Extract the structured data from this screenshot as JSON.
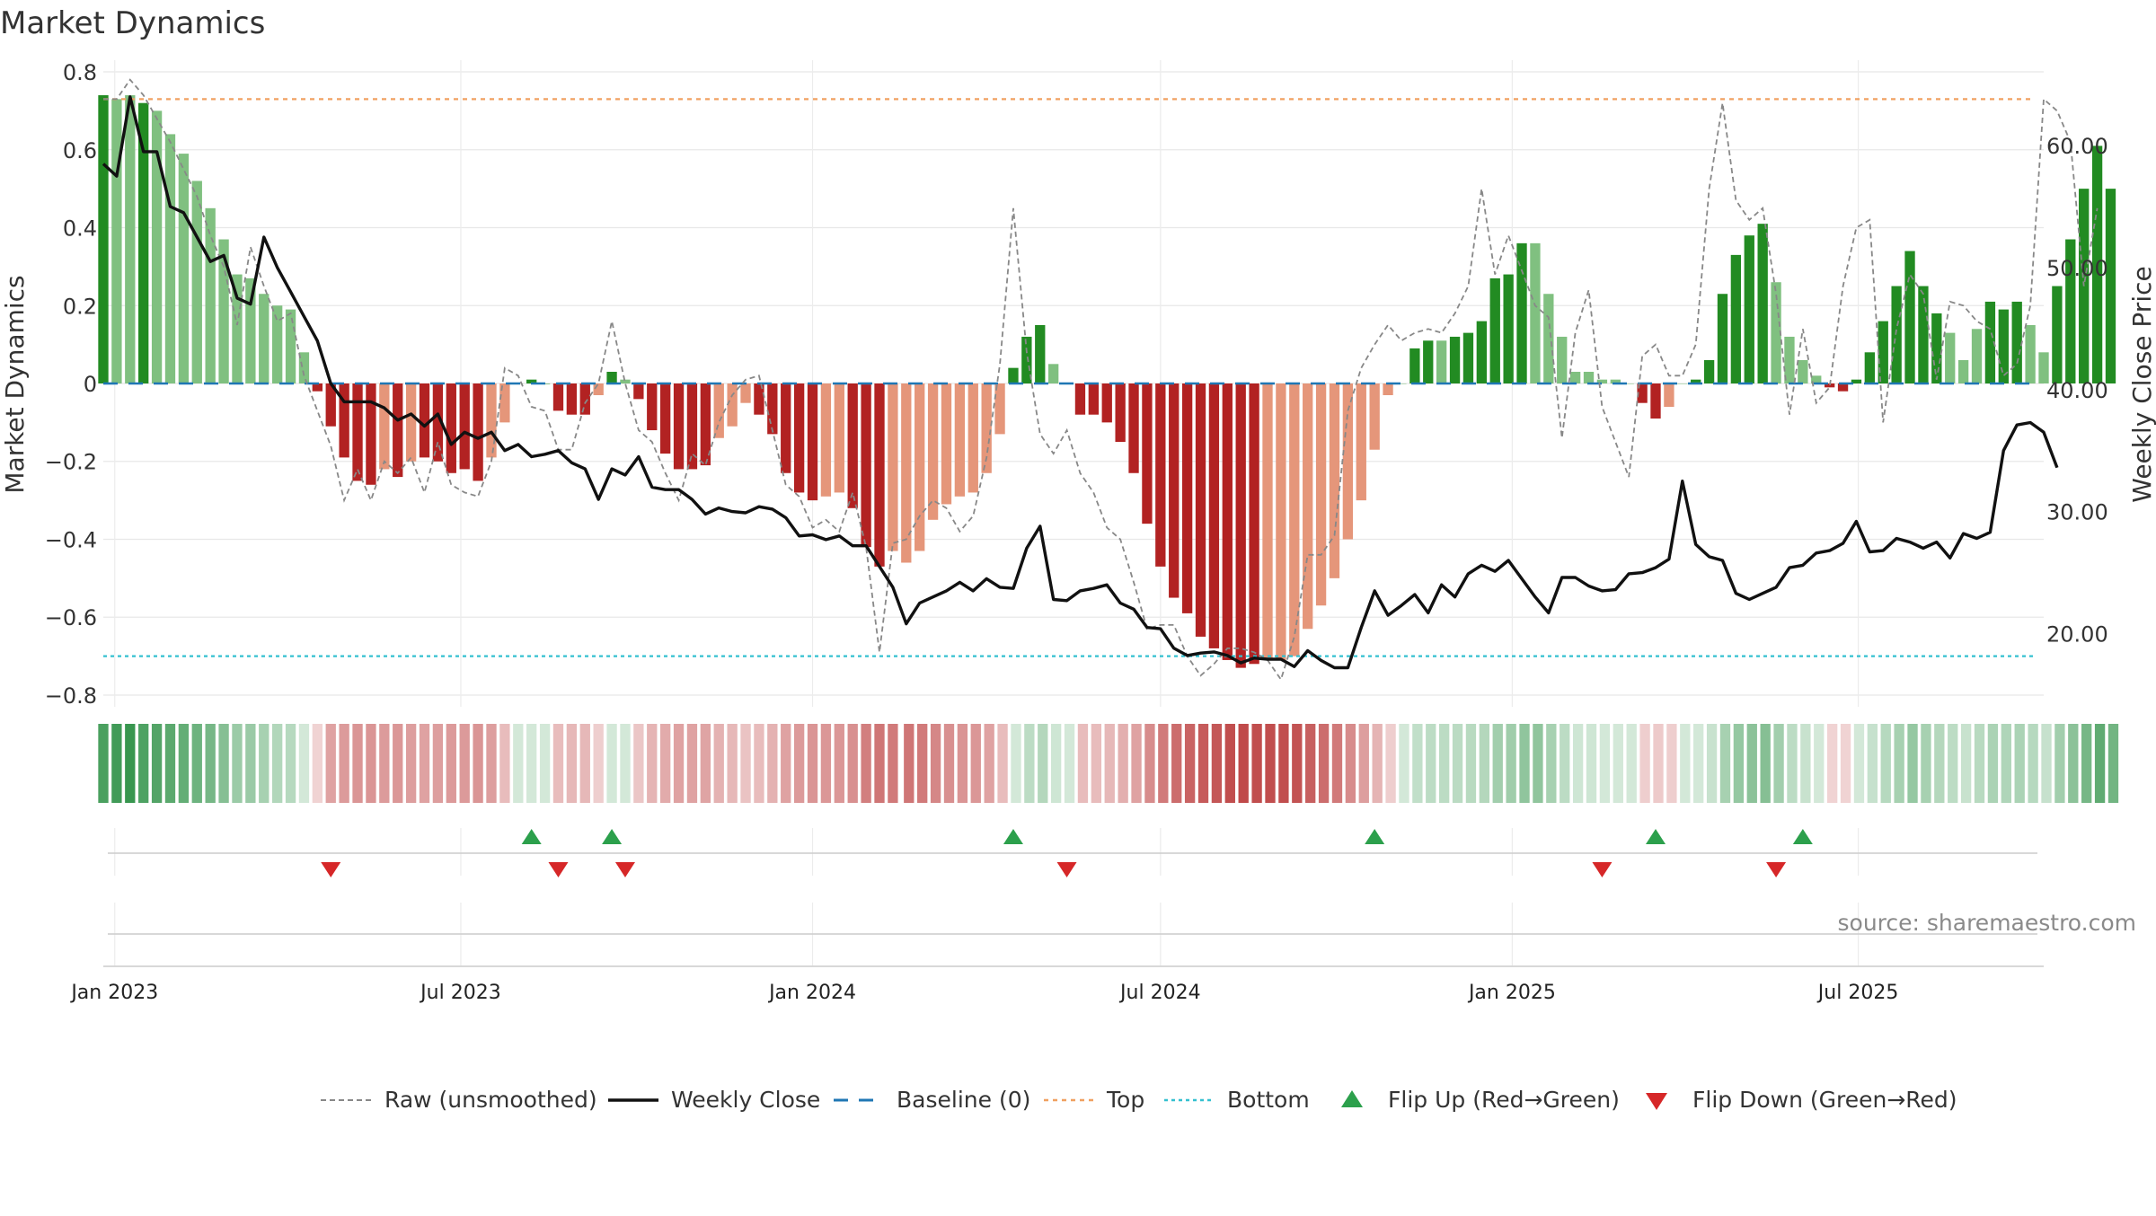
{
  "title": "Market Dynamics",
  "source": "source: sharemaestro.com",
  "chart_data": {
    "type": "bar",
    "title": "Market Dynamics",
    "ylabel": "Market Dynamics",
    "y2label": "Weekly Close Price",
    "ylim": [
      -0.83,
      0.83
    ],
    "y2lim": [
      14.0,
      67.0
    ],
    "yticks": [
      0.8,
      0.6,
      0.4,
      0.2,
      0,
      -0.2,
      -0.4,
      -0.6,
      -0.8
    ],
    "ytick_labels": [
      "0.8",
      "0.6",
      "0.4",
      "0.2",
      "0",
      "−0.2",
      "−0.4",
      "−0.6",
      "−0.8"
    ],
    "y2ticks": [
      60,
      50,
      40,
      30,
      20
    ],
    "y2tick_labels": [
      "60.00",
      "50.00",
      "40.00",
      "30.00",
      "20.00"
    ],
    "x_start": "2022-12-26",
    "x_end": "2025-10-06",
    "x_weekly_start": "2022-12-26",
    "xticks": [
      "2023-01-01",
      "2023-07-01",
      "2024-01-01",
      "2024-07-01",
      "2025-01-01",
      "2025-07-01"
    ],
    "xtick_labels": [
      "Jan 2023",
      "Jul 2023",
      "Jan 2024",
      "Jul 2024",
      "Jan 2025",
      "Jul 2025"
    ],
    "top_level": 0.73,
    "bottom_level": -0.7,
    "baseline": 0,
    "grid": true,
    "legend_position": "bottom",
    "legend": {
      "raw": "Raw (unsmoothed)",
      "close": "Weekly Close",
      "baseline": "Baseline (0)",
      "top": "Top",
      "bottom": "Bottom",
      "flip_up": "Flip Up (Red→Green)",
      "flip_down": "Flip Down (Green→Red)"
    },
    "colors": {
      "green_dark": "#228b22",
      "green_light": "#80c080",
      "red_dark": "#b22222",
      "red_light": "#e5967a",
      "raw": "#888888",
      "close": "#111111",
      "baseline": "#1f77b4",
      "top": "#f0a060",
      "bottom": "#33c0d0",
      "flip_up": "#2ca04c",
      "flip_down": "#d62728"
    },
    "dynamics": [
      0.74,
      0.73,
      0.74,
      0.72,
      0.7,
      0.64,
      0.59,
      0.52,
      0.45,
      0.37,
      0.28,
      0.27,
      0.23,
      0.2,
      0.19,
      0.08,
      -0.02,
      -0.11,
      -0.19,
      -0.25,
      -0.26,
      -0.22,
      -0.24,
      -0.2,
      -0.19,
      -0.2,
      -0.23,
      -0.22,
      -0.25,
      -0.19,
      -0.1,
      0,
      0.01,
      0,
      -0.07,
      -0.08,
      -0.08,
      -0.03,
      0.03,
      0.01,
      -0.04,
      -0.12,
      -0.18,
      -0.22,
      -0.22,
      -0.21,
      -0.14,
      -0.11,
      -0.05,
      -0.08,
      -0.13,
      -0.23,
      -0.28,
      -0.3,
      -0.29,
      -0.28,
      -0.32,
      -0.42,
      -0.47,
      -0.43,
      -0.46,
      -0.43,
      -0.35,
      -0.31,
      -0.29,
      -0.28,
      -0.23,
      -0.13,
      0.04,
      0.12,
      0.15,
      0.05,
      0,
      -0.08,
      -0.08,
      -0.1,
      -0.15,
      -0.23,
      -0.36,
      -0.47,
      -0.55,
      -0.59,
      -0.65,
      -0.68,
      -0.71,
      -0.73,
      -0.72,
      -0.71,
      -0.71,
      -0.7,
      -0.63,
      -0.57,
      -0.5,
      -0.4,
      -0.3,
      -0.17,
      -0.03,
      0,
      0.09,
      0.11,
      0.11,
      0.12,
      0.13,
      0.16,
      0.27,
      0.28,
      0.36,
      0.36,
      0.23,
      0.12,
      0.03,
      0.03,
      0.01,
      0.01,
      0,
      -0.05,
      -0.09,
      -0.06,
      0,
      0.01,
      0.06,
      0.23,
      0.33,
      0.38,
      0.41,
      0.26,
      0.12,
      0.06,
      0.02,
      -0.01,
      -0.02,
      0.01,
      0.08,
      0.16,
      0.25,
      0.34,
      0.25,
      0.18,
      0.13,
      0.06,
      0.14,
      0.21,
      0.19,
      0.21,
      0.15,
      0.08,
      0.25,
      0.37,
      0.5,
      0.61,
      0.5
    ],
    "dynamics_shade": [
      "d",
      "l",
      "l",
      "d",
      "l",
      "l",
      "l",
      "l",
      "l",
      "l",
      "l",
      "l",
      "l",
      "l",
      "l",
      "l",
      "d",
      "d",
      "d",
      "d",
      "d",
      "l",
      "d",
      "l",
      "d",
      "d",
      "d",
      "d",
      "d",
      "l",
      "l",
      "l",
      "d",
      "d",
      "d",
      "d",
      "d",
      "l",
      "d",
      "l",
      "d",
      "d",
      "d",
      "d",
      "d",
      "d",
      "l",
      "l",
      "l",
      "d",
      "d",
      "d",
      "d",
      "d",
      "l",
      "l",
      "d",
      "d",
      "d",
      "l",
      "l",
      "l",
      "l",
      "l",
      "l",
      "l",
      "l",
      "l",
      "d",
      "d",
      "d",
      "l",
      "l",
      "d",
      "d",
      "d",
      "d",
      "d",
      "d",
      "d",
      "d",
      "d",
      "d",
      "d",
      "d",
      "d",
      "d",
      "l",
      "l",
      "l",
      "l",
      "l",
      "l",
      "l",
      "l",
      "l",
      "l",
      "l",
      "d",
      "d",
      "l",
      "d",
      "d",
      "d",
      "d",
      "d",
      "d",
      "l",
      "l",
      "l",
      "l",
      "l",
      "l",
      "l",
      "l",
      "d",
      "d",
      "l",
      "l",
      "d",
      "d",
      "d",
      "d",
      "d",
      "d",
      "l",
      "l",
      "l",
      "l",
      "d",
      "d",
      "d",
      "d",
      "d",
      "d",
      "d",
      "d",
      "d",
      "l",
      "l",
      "l",
      "d",
      "d",
      "d",
      "l",
      "l",
      "d",
      "d",
      "d",
      "d",
      "d",
      "l"
    ],
    "raw": [
      0.73,
      0.73,
      0.78,
      0.74,
      0.68,
      0.62,
      0.55,
      0.48,
      0.38,
      0.3,
      0.15,
      0.35,
      0.25,
      0.16,
      0.18,
      0.02,
      -0.07,
      -0.16,
      -0.3,
      -0.22,
      -0.3,
      -0.2,
      -0.23,
      -0.19,
      -0.28,
      -0.15,
      -0.26,
      -0.28,
      -0.29,
      -0.2,
      0.04,
      0.02,
      -0.06,
      -0.07,
      -0.17,
      -0.17,
      -0.05,
      0.0,
      0.16,
      0.0,
      -0.12,
      -0.15,
      -0.23,
      -0.3,
      -0.18,
      -0.21,
      -0.1,
      -0.03,
      0.01,
      0.02,
      -0.12,
      -0.26,
      -0.29,
      -0.37,
      -0.35,
      -0.38,
      -0.28,
      -0.42,
      -0.69,
      -0.41,
      -0.4,
      -0.34,
      -0.3,
      -0.32,
      -0.38,
      -0.34,
      -0.19,
      0.05,
      0.45,
      0.08,
      -0.13,
      -0.18,
      -0.12,
      -0.23,
      -0.28,
      -0.37,
      -0.4,
      -0.51,
      -0.63,
      -0.62,
      -0.62,
      -0.7,
      -0.75,
      -0.72,
      -0.68,
      -0.68,
      -0.69,
      -0.71,
      -0.76,
      -0.65,
      -0.44,
      -0.44,
      -0.39,
      -0.07,
      0.04,
      0.1,
      0.15,
      0.11,
      0.13,
      0.14,
      0.13,
      0.18,
      0.25,
      0.5,
      0.28,
      0.38,
      0.29,
      0.2,
      0.17,
      -0.14,
      0.13,
      0.24,
      -0.06,
      -0.15,
      -0.24,
      0.07,
      0.1,
      0.02,
      0.02,
      0.1,
      0.5,
      0.72,
      0.47,
      0.42,
      0.45,
      0.23,
      -0.08,
      0.14,
      -0.05,
      -0.01,
      0.25,
      0.4,
      0.42,
      -0.1,
      0.14,
      0.28,
      0.23,
      0.01,
      0.21,
      0.2,
      0.16,
      0.14,
      0.02,
      0.05,
      0.2,
      0.73,
      0.7,
      0.62,
      0.25,
      0.45
    ],
    "close": [
      58.5,
      57.5,
      64.0,
      59.5,
      59.5,
      55.0,
      54.5,
      52.5,
      50.5,
      51.0,
      47.5,
      47.0,
      52.5,
      50.0,
      48.0,
      46.0,
      44.0,
      40.5,
      39.0,
      39.0,
      39.0,
      38.5,
      37.5,
      38.0,
      37.0,
      38.0,
      35.5,
      36.5,
      36.0,
      36.5,
      35.0,
      35.5,
      34.5,
      34.7,
      35.0,
      34.0,
      33.5,
      31.0,
      33.5,
      33.0,
      34.5,
      32.0,
      31.8,
      31.8,
      31.0,
      29.8,
      30.3,
      30.0,
      29.9,
      30.4,
      30.2,
      29.5,
      28.0,
      28.1,
      27.7,
      28.0,
      27.2,
      27.2,
      25.5,
      23.8,
      20.8,
      22.5,
      23.0,
      23.5,
      24.2,
      23.5,
      24.5,
      23.8,
      23.7,
      27.0,
      28.8,
      22.8,
      22.7,
      23.5,
      23.7,
      24.0,
      22.5,
      22.0,
      20.5,
      20.4,
      18.8,
      18.2,
      18.4,
      18.5,
      18.2,
      17.6,
      18.0,
      17.9,
      17.9,
      17.3,
      18.6,
      17.8,
      17.2,
      17.2,
      20.5,
      23.5,
      21.5,
      22.3,
      23.2,
      21.7,
      24.0,
      23.0,
      24.9,
      25.6,
      25.1,
      26.0,
      24.5,
      23.0,
      21.7,
      24.6,
      24.6,
      23.9,
      23.5,
      23.6,
      24.9,
      25.0,
      25.4,
      26.1,
      32.5,
      27.3,
      26.3,
      26.0,
      23.3,
      22.8,
      23.3,
      23.8,
      25.4,
      25.6,
      26.6,
      26.8,
      27.4,
      29.2,
      26.7,
      26.8,
      27.8,
      27.5,
      27.0,
      27.5,
      26.2,
      28.2,
      27.8,
      28.3,
      35.0,
      37.1,
      37.3,
      36.5,
      33.6
    ],
    "band_alpha": [
      0.82,
      0.86,
      0.9,
      0.8,
      0.78,
      0.74,
      0.7,
      0.66,
      0.62,
      0.55,
      0.45,
      0.46,
      0.4,
      0.35,
      0.33,
      0.2,
      0.2,
      0.42,
      0.45,
      0.48,
      0.48,
      0.45,
      0.47,
      0.44,
      0.42,
      0.44,
      0.46,
      0.46,
      0.48,
      0.44,
      0.3,
      0.2,
      0.2,
      0.2,
      0.3,
      0.32,
      0.32,
      0.22,
      0.2,
      0.2,
      0.26,
      0.34,
      0.38,
      0.42,
      0.42,
      0.41,
      0.35,
      0.32,
      0.27,
      0.3,
      0.35,
      0.42,
      0.46,
      0.48,
      0.47,
      0.47,
      0.5,
      0.58,
      0.62,
      0.6,
      0.62,
      0.6,
      0.54,
      0.5,
      0.48,
      0.47,
      0.42,
      0.3,
      0.2,
      0.3,
      0.34,
      0.22,
      0.2,
      0.3,
      0.3,
      0.32,
      0.36,
      0.42,
      0.52,
      0.6,
      0.66,
      0.7,
      0.74,
      0.76,
      0.8,
      0.82,
      0.8,
      0.8,
      0.8,
      0.78,
      0.72,
      0.66,
      0.6,
      0.52,
      0.44,
      0.34,
      0.22,
      0.2,
      0.28,
      0.3,
      0.3,
      0.31,
      0.32,
      0.34,
      0.42,
      0.43,
      0.5,
      0.5,
      0.4,
      0.3,
      0.22,
      0.22,
      0.2,
      0.2,
      0.2,
      0.22,
      0.24,
      0.22,
      0.2,
      0.2,
      0.25,
      0.4,
      0.48,
      0.52,
      0.55,
      0.42,
      0.3,
      0.25,
      0.2,
      0.2,
      0.2,
      0.2,
      0.26,
      0.33,
      0.4,
      0.48,
      0.4,
      0.34,
      0.3,
      0.25,
      0.32,
      0.38,
      0.36,
      0.38,
      0.33,
      0.26,
      0.42,
      0.52,
      0.62,
      0.72,
      0.64
    ],
    "band_gap_after_index": 59,
    "flip_up_indices": [
      32,
      38,
      68,
      95,
      116,
      127
    ],
    "flip_down_indices": [
      17,
      34,
      39,
      72,
      112,
      125
    ]
  }
}
